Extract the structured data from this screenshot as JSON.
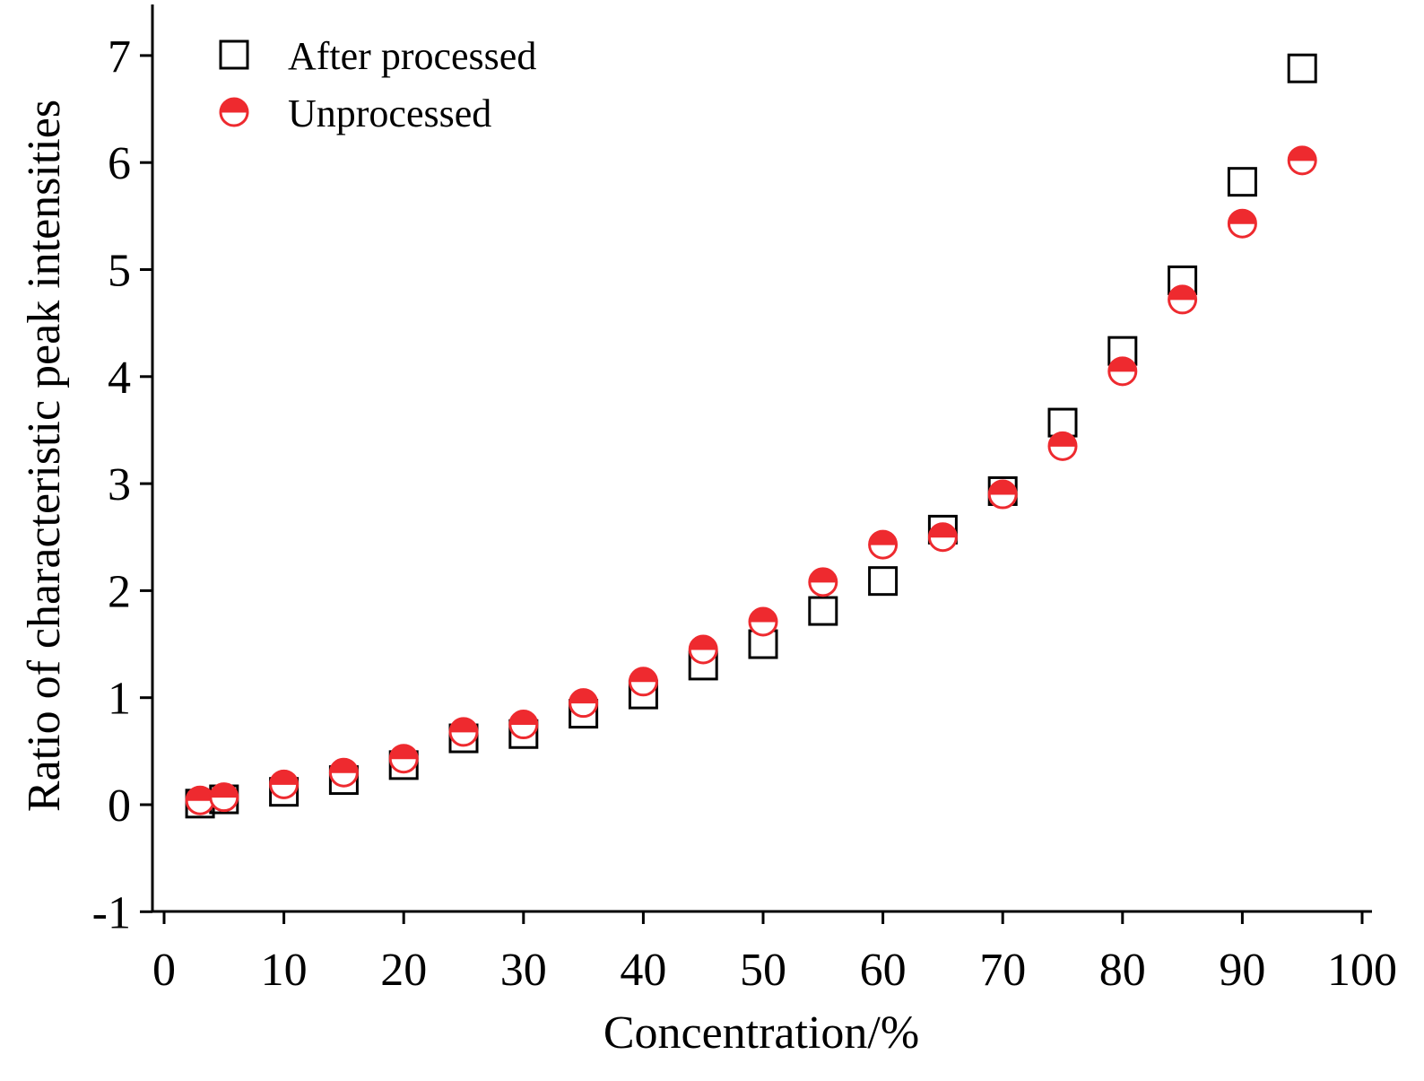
{
  "chart_data": {
    "type": "scatter",
    "title": "",
    "xlabel": "Concentration/%",
    "ylabel": "Ratio of characteristic peak intensities",
    "xlim": [
      -1,
      101
    ],
    "ylim": [
      -1,
      7.5
    ],
    "x_ticks": [
      0,
      10,
      20,
      30,
      40,
      50,
      60,
      70,
      80,
      90,
      100
    ],
    "y_ticks": [
      -1,
      0,
      1,
      2,
      3,
      4,
      5,
      6,
      7
    ],
    "x_tick_labels": [
      "0",
      "10",
      "20",
      "30",
      "40",
      "50",
      "60",
      "70",
      "80",
      "90",
      "100"
    ],
    "y_tick_labels": [
      "-1",
      "0",
      "1",
      "2",
      "3",
      "4",
      "5",
      "6",
      "7"
    ],
    "grid": false,
    "legend_position": "top-left",
    "series": [
      {
        "name": "After processed",
        "marker": "open-square",
        "color": "#000000",
        "x": [
          3,
          5,
          10,
          15,
          20,
          25,
          30,
          35,
          40,
          45,
          50,
          55,
          60,
          65,
          70,
          75,
          80,
          85,
          90,
          95
        ],
        "y": [
          0.01,
          0.05,
          0.12,
          0.23,
          0.37,
          0.62,
          0.66,
          0.85,
          1.03,
          1.3,
          1.5,
          1.81,
          2.09,
          2.57,
          2.93,
          3.57,
          4.24,
          4.9,
          5.82,
          6.88
        ]
      },
      {
        "name": "Unprocessed",
        "marker": "half-filled-circle",
        "color": "#ee2a2f",
        "x": [
          3,
          5,
          10,
          15,
          20,
          25,
          30,
          35,
          40,
          45,
          50,
          55,
          60,
          65,
          70,
          75,
          80,
          85,
          90,
          95
        ],
        "y": [
          0.04,
          0.07,
          0.19,
          0.3,
          0.43,
          0.68,
          0.75,
          0.95,
          1.15,
          1.45,
          1.71,
          2.08,
          2.43,
          2.5,
          2.9,
          3.35,
          4.05,
          4.72,
          5.43,
          6.02
        ]
      }
    ]
  }
}
